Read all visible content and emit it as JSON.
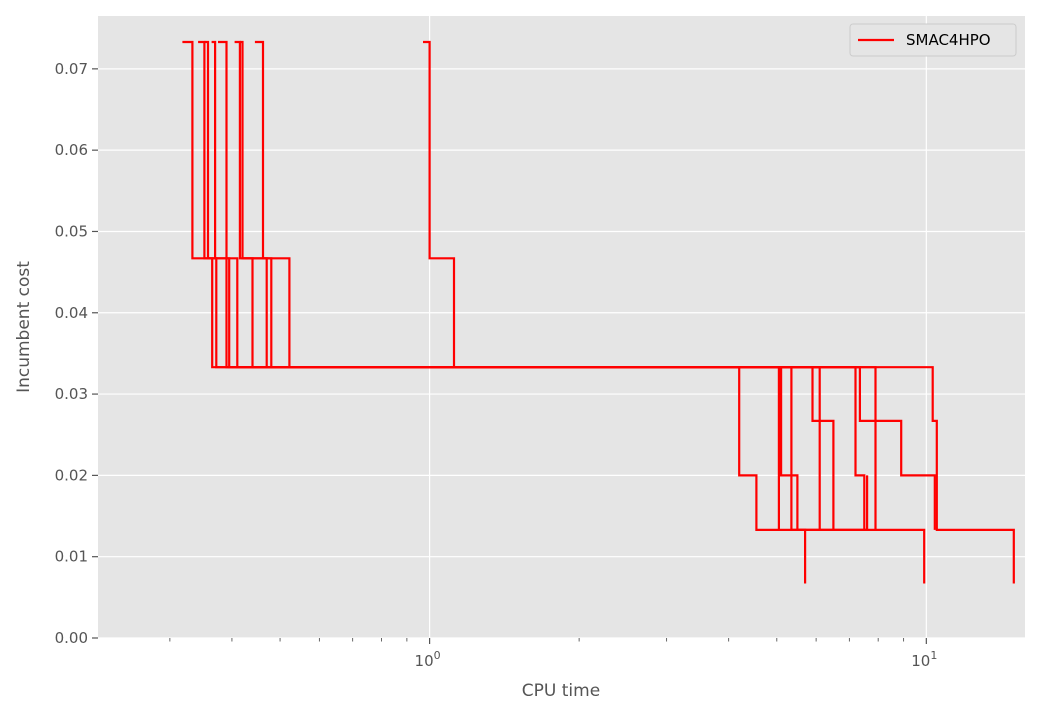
{
  "chart_data": {
    "type": "line",
    "xscale": "log",
    "xlabel": "CPU time",
    "ylabel": "Incumbent cost",
    "xlim": [
      0.215,
      15.8
    ],
    "ylim": [
      0.0,
      0.0765
    ],
    "grid": true,
    "legend": "top-right",
    "colors": {
      "background": "#e5e5e5",
      "grid": "#ffffff",
      "series": "#ff0000"
    },
    "xticks": [
      {
        "value": 1,
        "base": "10",
        "exp": "0"
      },
      {
        "value": 10,
        "base": "10",
        "exp": "1"
      }
    ],
    "yticks": [
      {
        "value": 0.0,
        "label": "0.00"
      },
      {
        "value": 0.01,
        "label": "0.01"
      },
      {
        "value": 0.02,
        "label": "0.02"
      },
      {
        "value": 0.03,
        "label": "0.03"
      },
      {
        "value": 0.04,
        "label": "0.04"
      },
      {
        "value": 0.05,
        "label": "0.05"
      },
      {
        "value": 0.06,
        "label": "0.06"
      },
      {
        "value": 0.07,
        "label": "0.07"
      }
    ],
    "series": [
      {
        "name": "SMAC4HPO",
        "runs": [
          [
            [
              0.318,
              0.0733
            ],
            [
              0.333,
              0.0733
            ],
            [
              0.333,
              0.0467
            ],
            [
              0.365,
              0.0467
            ],
            [
              0.365,
              0.0333
            ],
            [
              10.3,
              0.0333
            ],
            [
              10.3,
              0.0267
            ],
            [
              10.5,
              0.0267
            ],
            [
              10.5,
              0.0133
            ],
            [
              15.0,
              0.0133
            ],
            [
              15.0,
              0.0067
            ]
          ],
          [
            [
              0.342,
              0.0733
            ],
            [
              0.352,
              0.0733
            ],
            [
              0.352,
              0.0467
            ],
            [
              0.372,
              0.0467
            ],
            [
              0.372,
              0.0333
            ],
            [
              4.2,
              0.0333
            ],
            [
              4.2,
              0.02
            ],
            [
              4.55,
              0.02
            ],
            [
              4.55,
              0.0133
            ],
            [
              9.9,
              0.0133
            ],
            [
              9.9,
              0.0067
            ]
          ],
          [
            [
              0.352,
              0.0733
            ],
            [
              0.358,
              0.0733
            ],
            [
              0.358,
              0.0467
            ],
            [
              0.39,
              0.0467
            ],
            [
              0.39,
              0.0333
            ],
            [
              5.1,
              0.0333
            ],
            [
              5.1,
              0.02
            ],
            [
              5.5,
              0.02
            ],
            [
              5.5,
              0.0133
            ],
            [
              5.7,
              0.0133
            ],
            [
              5.7,
              0.0067
            ]
          ],
          [
            [
              0.364,
              0.0733
            ],
            [
              0.37,
              0.0733
            ],
            [
              0.37,
              0.0467
            ],
            [
              0.395,
              0.0467
            ],
            [
              0.395,
              0.0333
            ],
            [
              5.35,
              0.0333
            ],
            [
              5.35,
              0.0133
            ],
            [
              7.6,
              0.0133
            ],
            [
              7.6,
              0.02
            ],
            [
              7.6,
              0.02
            ]
          ],
          [
            [
              0.375,
              0.0733
            ],
            [
              0.39,
              0.0733
            ],
            [
              0.39,
              0.0467
            ],
            [
              0.41,
              0.0467
            ],
            [
              0.41,
              0.0333
            ],
            [
              5.05,
              0.0333
            ],
            [
              5.05,
              0.0133
            ],
            [
              5.05,
              0.0133
            ]
          ],
          [
            [
              0.405,
              0.0733
            ],
            [
              0.415,
              0.0733
            ],
            [
              0.415,
              0.0467
            ],
            [
              0.44,
              0.0467
            ],
            [
              0.44,
              0.0333
            ],
            [
              5.9,
              0.0333
            ],
            [
              5.9,
              0.0267
            ],
            [
              6.5,
              0.0267
            ],
            [
              6.5,
              0.0133
            ],
            [
              6.5,
              0.0133
            ]
          ],
          [
            [
              0.415,
              0.0733
            ],
            [
              0.42,
              0.0733
            ],
            [
              0.42,
              0.0467
            ],
            [
              0.48,
              0.0467
            ],
            [
              0.48,
              0.0333
            ],
            [
              7.2,
              0.0333
            ],
            [
              7.2,
              0.02
            ],
            [
              7.5,
              0.02
            ],
            [
              7.5,
              0.0133
            ],
            [
              7.5,
              0.0133
            ]
          ],
          [
            [
              0.445,
              0.0733
            ],
            [
              0.462,
              0.0733
            ],
            [
              0.462,
              0.0467
            ],
            [
              0.522,
              0.0467
            ],
            [
              0.522,
              0.0333
            ],
            [
              7.9,
              0.0333
            ],
            [
              7.9,
              0.0267
            ],
            [
              8.9,
              0.0267
            ],
            [
              8.9,
              0.02
            ],
            [
              10.4,
              0.02
            ],
            [
              10.4,
              0.0133
            ],
            [
              10.4,
              0.0133
            ]
          ],
          [
            [
              0.42,
              0.0467
            ],
            [
              0.47,
              0.0467
            ],
            [
              0.47,
              0.0333
            ],
            [
              6.1,
              0.0333
            ],
            [
              6.1,
              0.0133
            ],
            [
              6.1,
              0.0133
            ]
          ],
          [
            [
              0.97,
              0.0733
            ],
            [
              1.0,
              0.0733
            ],
            [
              1.0,
              0.0467
            ],
            [
              1.12,
              0.0467
            ],
            [
              1.12,
              0.0333
            ],
            [
              7.35,
              0.0333
            ],
            [
              7.35,
              0.0267
            ],
            [
              7.9,
              0.0267
            ],
            [
              7.9,
              0.0133
            ],
            [
              7.9,
              0.0133
            ]
          ]
        ]
      }
    ]
  }
}
